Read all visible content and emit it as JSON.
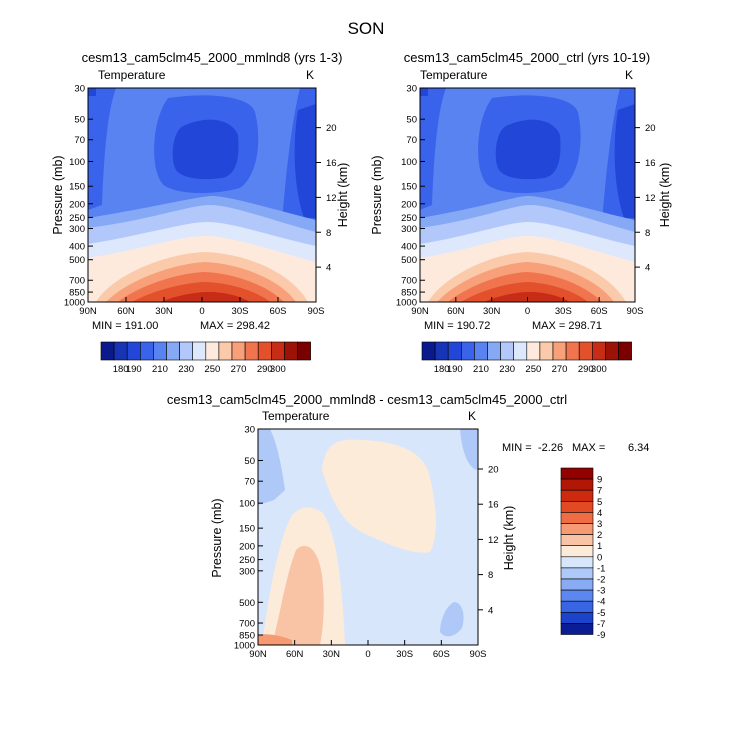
{
  "figure": {
    "title": "SON"
  },
  "chart_data": [
    {
      "type": "heatmap",
      "title": "cesm13_cam5clm45_2000_mmlnd8 (yrs 1-3)",
      "left_label": "Temperature",
      "units": "K",
      "ylabel": "Pressure (mb)",
      "y2label": "Height (km)",
      "x_ticks": [
        "90N",
        "60N",
        "30N",
        "0",
        "30S",
        "60S",
        "90S"
      ],
      "y_ticks": [
        "30",
        "50",
        "70",
        "100",
        "150",
        "200",
        "250",
        "300",
        "400",
        "500",
        "700",
        "850",
        "1000"
      ],
      "y2_ticks": [
        "20",
        "16",
        "12",
        "8",
        "4"
      ],
      "min_text": "MIN = 191.00",
      "max_text": "MAX = 298.42",
      "colorbar": {
        "levels": [
          180,
          190,
          200,
          210,
          220,
          230,
          240,
          250,
          260,
          270,
          280,
          290,
          300
        ],
        "labels": [
          "180",
          "190",
          "210",
          "230",
          "250",
          "270",
          "290",
          "300"
        ]
      }
    },
    {
      "type": "heatmap",
      "title": "cesm13_cam5clm45_2000_ctrl (yrs 10-19)",
      "left_label": "Temperature",
      "units": "K",
      "ylabel": "Pressure (mb)",
      "y2label": "Height (km)",
      "x_ticks": [
        "90N",
        "60N",
        "30N",
        "0",
        "30S",
        "60S",
        "90S"
      ],
      "y_ticks": [
        "30",
        "50",
        "70",
        "100",
        "150",
        "200",
        "250",
        "300",
        "400",
        "500",
        "700",
        "850",
        "1000"
      ],
      "y2_ticks": [
        "20",
        "16",
        "12",
        "8",
        "4"
      ],
      "min_text": "MIN = 190.72",
      "max_text": "MAX = 298.71",
      "colorbar": {
        "levels": [
          180,
          190,
          200,
          210,
          220,
          230,
          240,
          250,
          260,
          270,
          280,
          290,
          300
        ],
        "labels": [
          "180",
          "190",
          "210",
          "230",
          "250",
          "270",
          "290",
          "300"
        ]
      }
    },
    {
      "type": "heatmap",
      "title": "cesm13_cam5clm45_2000_mmlnd8 - cesm13_cam5clm45_2000_ctrl",
      "left_label": "Temperature",
      "units": "K",
      "ylabel": "Pressure (mb)",
      "y2label": "Height (km)",
      "x_ticks": [
        "90N",
        "60N",
        "30N",
        "0",
        "30S",
        "60S",
        "90S"
      ],
      "y_ticks": [
        "30",
        "50",
        "70",
        "100",
        "150",
        "200",
        "250",
        "300",
        "500",
        "700",
        "850",
        "1000"
      ],
      "y2_ticks": [
        "20",
        "16",
        "12",
        "8",
        "4"
      ],
      "min_text": "MIN =",
      "min_value": "-2.26",
      "max_text": "MAX =",
      "max_value": "6.34",
      "colorbar": {
        "levels": [
          9,
          7,
          5,
          4,
          3,
          2,
          1,
          0,
          -1,
          -2,
          -3,
          -4,
          -5,
          -7,
          -9
        ],
        "labels": [
          "9",
          "7",
          "5",
          "4",
          "3",
          "2",
          "1",
          "0",
          "-1",
          "-2",
          "-3",
          "-4",
          "-5",
          "-7",
          "-9"
        ]
      }
    }
  ],
  "colors": {
    "temp_palette": [
      "#0a1a8c",
      "#1634b4",
      "#2247d8",
      "#3a63ec",
      "#5a83f2",
      "#86a9f6",
      "#b3c8fa",
      "#dde8fd",
      "#fdeadc",
      "#fbcaaa",
      "#f7a07a",
      "#f0754e",
      "#e2502c",
      "#c62c16",
      "#9c1206",
      "#7a0000"
    ],
    "diff_palette": [
      "#920000",
      "#b21706",
      "#cd2a10",
      "#e14a22",
      "#ef6c44",
      "#f59a73",
      "#f9c4a6",
      "#fdebd9",
      "#d8e6fc",
      "#aec8f8",
      "#88abf4",
      "#5c87ee",
      "#3865e4",
      "#1c43cc",
      "#0a1d94"
    ]
  }
}
